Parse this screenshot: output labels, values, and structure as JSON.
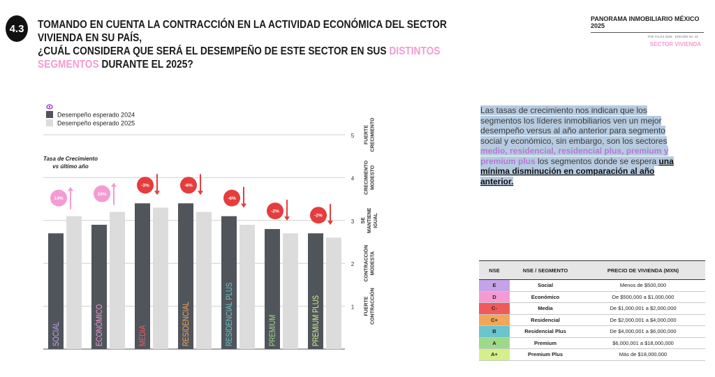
{
  "header": {
    "badge": "4.3",
    "title_line1": "TOMANDO EN CUENTA LA CONTRACCIÓN EN LA ACTIVIDAD ECONÓMICA DEL SECTOR VIVIENDA EN SU PAÍS,",
    "title_line2_a": "¿CUÁL CONSIDERA QUE SERÁ EL DESEMPEÑO DE ESTE SECTOR EN SUS ",
    "title_line2_hl": "DISTINTOS SEGMENTOS",
    "title_line2_b": " DURANTE EL 2025?",
    "brand": "PANORAMA INMOBILIARIO MÉXICO 2025",
    "edition": "THE TALKS 2025 · EDICIÓN No. 01",
    "section": "SECTOR VIVIENDA"
  },
  "colors": {
    "pink": "#f49bd3",
    "dark_bar": "#50555c",
    "light_bar": "#dcdcdc",
    "red": "#e53d3d"
  },
  "chart_data": {
    "type": "bar",
    "categories": [
      "SOCIAL",
      "ECONÓMICO",
      "MEDIA",
      "RESIDENCIAL",
      "RESIDENCIAL PLUS",
      "PREMIUM",
      "PREMIUM PLUS"
    ],
    "category_colors": [
      "#c5a3e8",
      "#f49bd3",
      "#f05a5a",
      "#f2a65a",
      "#6cc4cc",
      "#9ed98a",
      "#d4f08a"
    ],
    "series": [
      {
        "name": "Desempeño esperado 2024",
        "values": [
          2.7,
          2.9,
          3.4,
          3.4,
          3.1,
          2.8,
          2.7
        ]
      },
      {
        "name": "Desempeño esperado 2025",
        "values": [
          3.1,
          3.2,
          3.3,
          3.2,
          2.9,
          2.7,
          2.6
        ]
      }
    ],
    "changes": [
      "14%",
      "10%",
      "-3%",
      "-6%",
      "-6%",
      "-2%",
      "-2%"
    ],
    "change_direction": [
      "up",
      "up",
      "down",
      "down",
      "down",
      "down",
      "down"
    ],
    "ylim": [
      0,
      5
    ],
    "yticks": [
      1,
      2,
      3,
      4,
      5
    ],
    "right_labels": [
      {
        "value": 1,
        "text": "FUERTE CONTRACCIÓN"
      },
      {
        "value": 2,
        "text": "CONTRACCIÓN MODESTA"
      },
      {
        "value": 3,
        "text": "SE MANTIENE IGUAL"
      },
      {
        "value": 4,
        "text": "CRECIMIENTO MODESTO"
      },
      {
        "value": 5,
        "text": "FUERTE CRECIMIENTO"
      }
    ],
    "growth_label": "Tasa de Crecimiento vs último año"
  },
  "paragraph": {
    "p1": "Las tasas de crecimiento nos indican que los segmentos los líderes inmobiliarios ven un mejor desempeño versus al año anterior para segmento social y económico, sin embargo, son los sectores ",
    "p2": "medio, residencial, residencial plus, premium y premium plus",
    "p3": " los segmentos donde se espera ",
    "p4": "una mínima disminución en comparación al año anterior."
  },
  "table": {
    "headers": [
      "NSE",
      "NSE / SEGMENTO",
      "PRECIO DE VIVIENDA (MXN)"
    ],
    "rows": [
      {
        "nse": "E",
        "segment": "Social",
        "price": "Menos de $500,000",
        "color": "#c5a3e8"
      },
      {
        "nse": "D",
        "segment": "Económico",
        "price": "De $500,000 a $1,000,000",
        "color": "#f49bd3"
      },
      {
        "nse": "C-",
        "segment": "Media",
        "price": "De $1,000,001 a $2,000,000",
        "color": "#f05a5a"
      },
      {
        "nse": "C+",
        "segment": "Residencial",
        "price": "De $2,000,001 a $4,000,000",
        "color": "#f2a65a"
      },
      {
        "nse": "B",
        "segment": "Residencial Plus",
        "price": "De $4,000,001 a $6,000,000",
        "color": "#6cc4cc"
      },
      {
        "nse": "A",
        "segment": "Premium",
        "price": "$6,000,001 a $18,000,000",
        "color": "#9ed98a"
      },
      {
        "nse": "A+",
        "segment": "Premium Plus",
        "price": "Más de $18,000,000",
        "color": "#d4f08a"
      }
    ]
  }
}
